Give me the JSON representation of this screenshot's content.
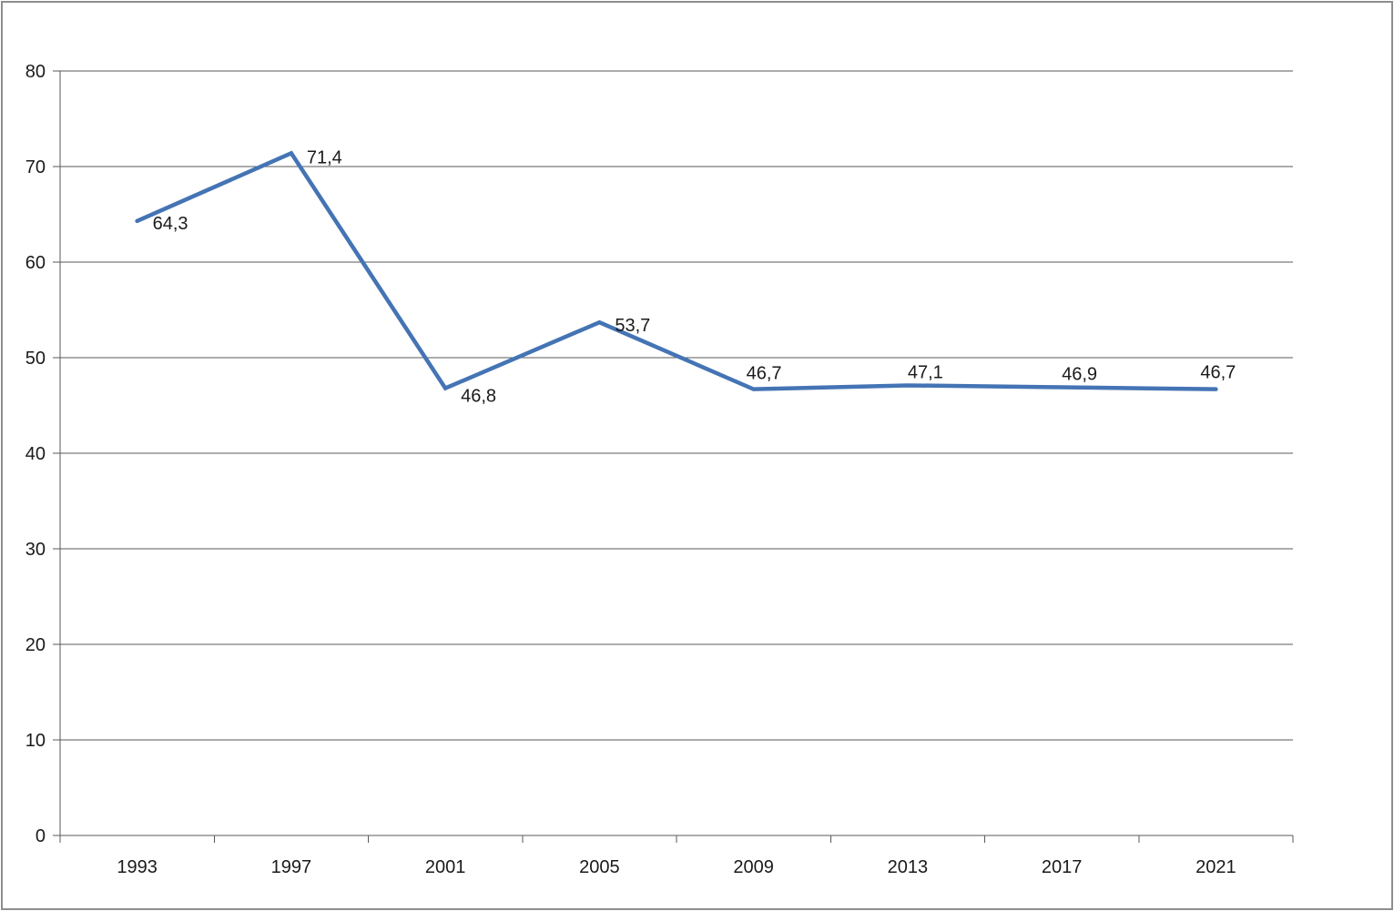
{
  "chart_data": {
    "type": "line",
    "title": "",
    "xlabel": "",
    "ylabel": "",
    "categories": [
      "1993",
      "1997",
      "2001",
      "2005",
      "2009",
      "2013",
      "2017",
      "2021"
    ],
    "series": [
      {
        "name": "series-1",
        "values": [
          64.3,
          71.4,
          46.8,
          53.7,
          46.7,
          47.1,
          46.9,
          46.7
        ],
        "data_labels": [
          "64,3",
          "71,4",
          "46,8",
          "53,7",
          "46,7",
          "47,1",
          "46,9",
          "46,7"
        ]
      }
    ],
    "y_ticks": [
      0,
      10,
      20,
      30,
      40,
      50,
      60,
      70,
      80
    ],
    "y_tick_labels": [
      "0",
      "10",
      "20",
      "30",
      "40",
      "50",
      "60",
      "70",
      "80"
    ],
    "ylim": [
      0,
      80
    ],
    "grid": true,
    "legend": false,
    "colors": {
      "line": "#4474B4",
      "gridline": "#595959",
      "axis": "#595959",
      "text": "#1a1a1a",
      "frame_border": "#8e8e8e",
      "background": "#ffffff"
    }
  }
}
